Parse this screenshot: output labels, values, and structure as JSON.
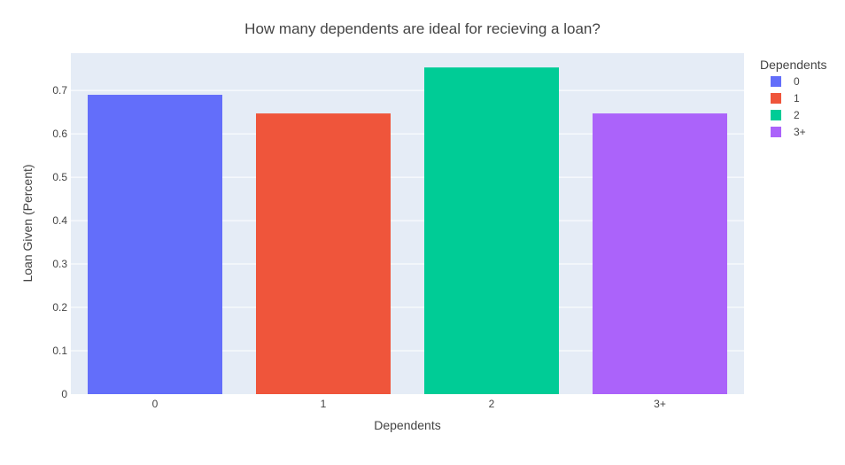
{
  "chart_data": {
    "type": "bar",
    "title": "How many dependents are ideal for recieving a loan?",
    "xlabel": "Dependents",
    "ylabel": "Loan Given (Percent)",
    "categories": [
      "0",
      "1",
      "2",
      "3+"
    ],
    "ylim": [
      0,
      0.786
    ],
    "yticks": [
      0,
      0.1,
      0.2,
      0.3,
      0.4,
      0.5,
      0.6,
      0.7
    ],
    "ytick_labels": [
      "0",
      "0.1",
      "0.2",
      "0.3",
      "0.4",
      "0.5",
      "0.6",
      "0.7"
    ],
    "grid": true,
    "legend_position": "right",
    "legend_title": "Dependents",
    "series": [
      {
        "name": "0",
        "category": "0",
        "value": 0.69,
        "color": "#636efa"
      },
      {
        "name": "1",
        "category": "1",
        "value": 0.647,
        "color": "#ef553b"
      },
      {
        "name": "2",
        "category": "2",
        "value": 0.753,
        "color": "#00cc96"
      },
      {
        "name": "3+",
        "category": "3+",
        "value": 0.647,
        "color": "#ab63fa"
      }
    ],
    "plot_background": "#e5ecf6"
  }
}
